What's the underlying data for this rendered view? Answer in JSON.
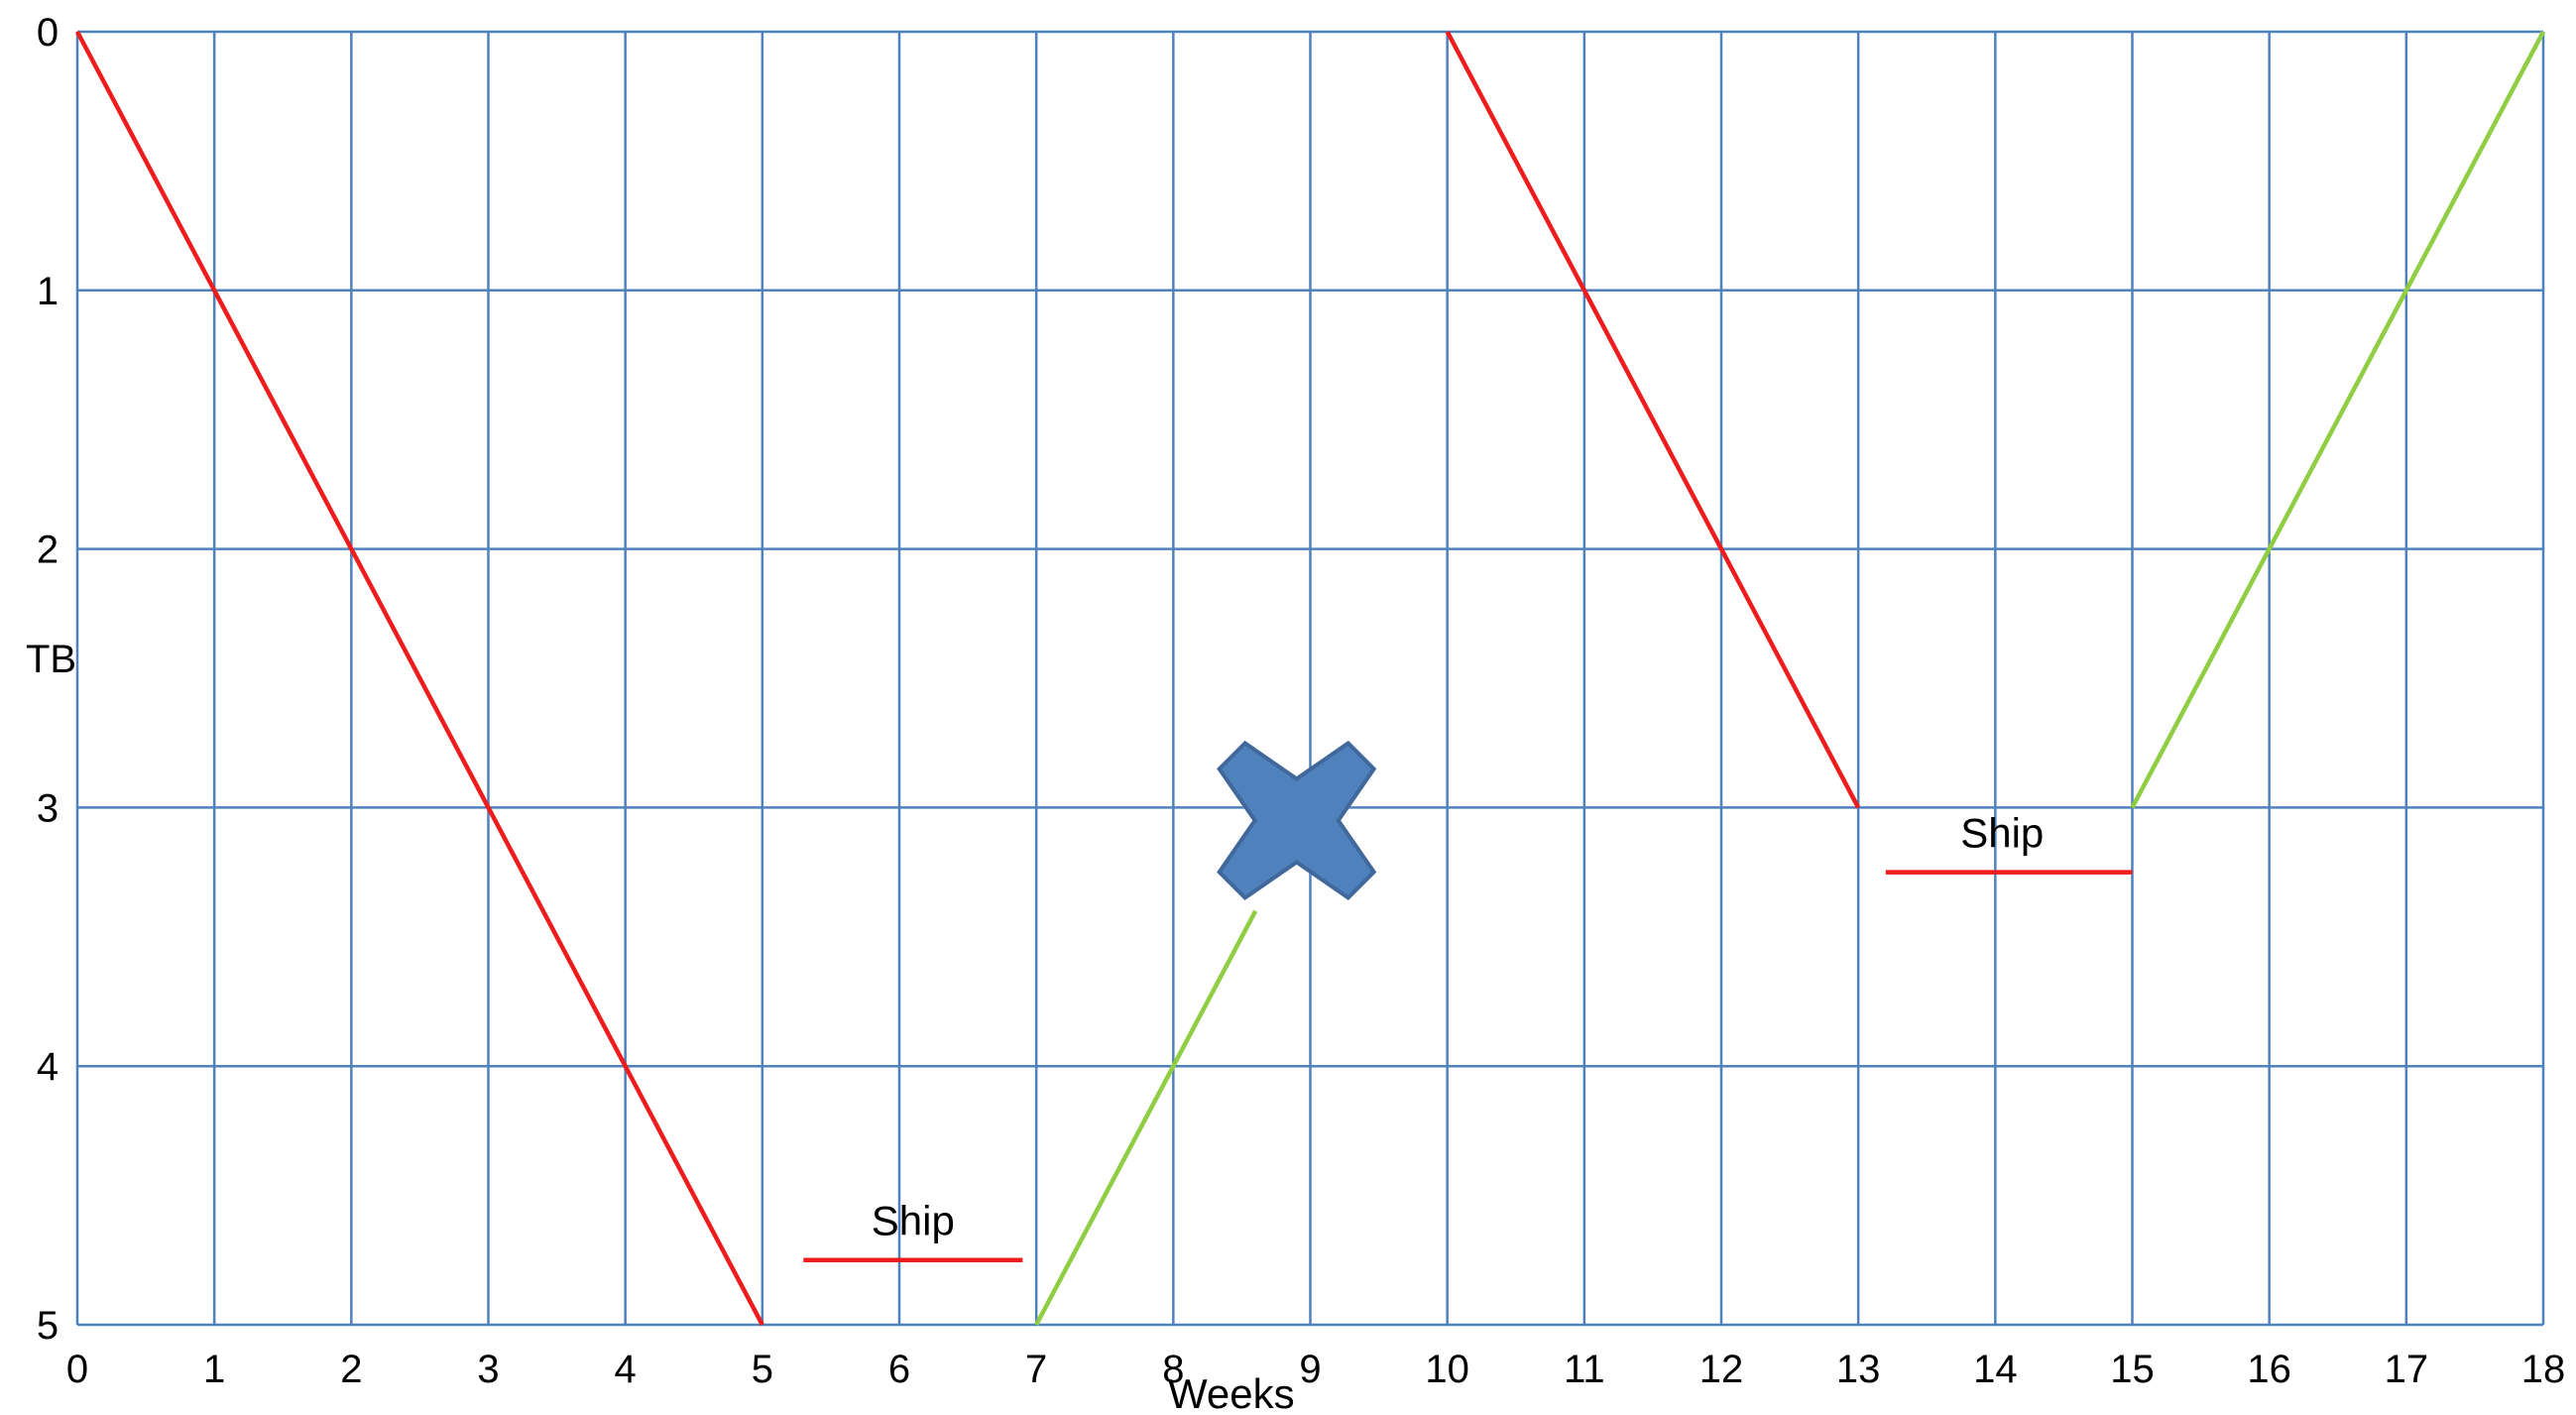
{
  "chart_data": {
    "type": "line",
    "xlabel": "Weeks",
    "ylabel": "TB",
    "xlim": [
      0,
      18
    ],
    "ylim": [
      0,
      5
    ],
    "y_inverted": true,
    "grid": true,
    "x_ticks": [
      "0",
      "1",
      "2",
      "3",
      "4",
      "5",
      "6",
      "7",
      "8",
      "9",
      "10",
      "11",
      "12",
      "13",
      "14",
      "15",
      "16",
      "17",
      "18"
    ],
    "y_ticks": [
      "0",
      "1",
      "2",
      "3",
      "4",
      "5"
    ],
    "series": [
      {
        "color": "#ee1c1c",
        "points": [
          [
            0,
            0
          ],
          [
            1,
            1
          ],
          [
            2,
            2
          ],
          [
            3,
            3
          ],
          [
            4,
            4
          ],
          [
            5,
            5
          ]
        ]
      },
      {
        "color": "#8fce43",
        "points": [
          [
            7,
            5
          ],
          [
            8,
            4
          ],
          [
            8.6,
            3.4
          ]
        ]
      },
      {
        "color": "#ee1c1c",
        "points": [
          [
            10,
            0
          ],
          [
            11,
            1
          ],
          [
            12,
            2
          ],
          [
            13,
            3
          ]
        ]
      },
      {
        "color": "#8fce43",
        "points": [
          [
            15,
            3
          ],
          [
            16,
            2
          ],
          [
            17,
            1
          ],
          [
            18,
            0
          ]
        ]
      }
    ],
    "annotations": [
      {
        "text": "Ship",
        "line_x": [
          5.3,
          6.9
        ],
        "line_y": 4.75,
        "label_x": 6.1,
        "label_y": 4.6,
        "color": "#ee1c1c"
      },
      {
        "text": "Ship",
        "line_x": [
          13.2,
          15
        ],
        "line_y": 3.25,
        "label_x": 14.05,
        "label_y": 3.1,
        "color": "#ee1c1c"
      }
    ],
    "marker": {
      "icon": "x-mark-icon",
      "x": 8.9,
      "y": 3.05,
      "color": "#4f81bd",
      "border": "#41689a"
    },
    "colors": {
      "grid": "#4f81bd"
    }
  }
}
